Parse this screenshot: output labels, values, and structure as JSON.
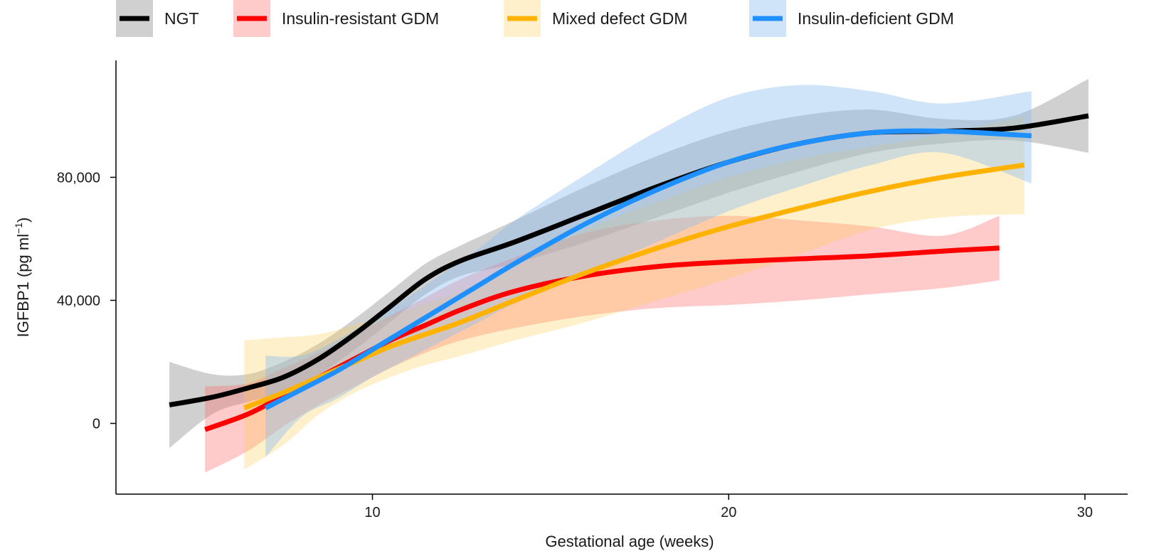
{
  "chart_data": {
    "type": "line",
    "title": "",
    "xlabel": "Gestational age (weeks)",
    "ylabel": "IGFBP1 (pg ml",
    "ylabel_sup": "−1",
    "ylabel_close": ")",
    "xlim": [
      2.8,
      31.2
    ],
    "ylim": [
      -23000,
      118000
    ],
    "xticks": [
      10,
      20,
      30
    ],
    "xtick_labels": [
      "10",
      "20",
      "30"
    ],
    "yticks": [
      0,
      40000,
      80000
    ],
    "ytick_labels": [
      "0",
      "40,000",
      "80,000"
    ],
    "grid": false,
    "legend_position": "top",
    "series": [
      {
        "name": "NGT",
        "color": "#000000",
        "band_color": "#777777",
        "band_opacity": 0.35,
        "x": [
          4.3,
          5.5,
          6.5,
          7.5,
          8.5,
          9.5,
          10.5,
          11.5,
          12.5,
          14,
          16,
          18,
          20,
          22,
          24,
          26,
          28,
          30.1
        ],
        "y": [
          6000,
          8500,
          11500,
          15000,
          21000,
          29000,
          38000,
          47000,
          53000,
          59000,
          68000,
          77000,
          85000,
          91000,
          94500,
          95000,
          96000,
          100000
        ],
        "lower": [
          -8000,
          3000,
          7000,
          10000,
          16000,
          24000,
          33000,
          42000,
          48000,
          52000,
          59000,
          67000,
          75000,
          82000,
          88000,
          91000,
          92000,
          88000
        ],
        "upper": [
          20000,
          16000,
          16000,
          20000,
          26000,
          34000,
          43000,
          52000,
          58000,
          66000,
          77000,
          87000,
          95000,
          100000,
          102000,
          99000,
          100000,
          112000
        ]
      },
      {
        "name": "Insulin-resistant GDM",
        "color": "#ff0000",
        "band_color": "#ff6666",
        "band_opacity": 0.35,
        "x": [
          5.3,
          6.5,
          7.5,
          8.5,
          9.5,
          10.5,
          11.5,
          12.5,
          14,
          16,
          18,
          20,
          22,
          24,
          26,
          27.6
        ],
        "y": [
          -2000,
          3000,
          9000,
          15000,
          21000,
          27000,
          32000,
          37000,
          43000,
          48000,
          51000,
          52500,
          53500,
          54500,
          56000,
          57000
        ],
        "lower": [
          -16000,
          -9000,
          -1000,
          6000,
          12000,
          18000,
          23000,
          27000,
          31000,
          35000,
          37500,
          38500,
          40000,
          42000,
          44000,
          46500
        ],
        "upper": [
          12000,
          13000,
          18000,
          23000,
          29000,
          35000,
          41000,
          47000,
          54000,
          62000,
          66000,
          67500,
          66000,
          64000,
          61000,
          67500
        ]
      },
      {
        "name": "Mixed defect GDM",
        "color": "#ffb300",
        "band_color": "#ffcc55",
        "band_opacity": 0.3,
        "x": [
          6.4,
          7.5,
          8.5,
          9.5,
          10.5,
          11.5,
          12.5,
          14,
          16,
          18,
          20,
          22,
          24,
          26,
          28.3
        ],
        "y": [
          5000,
          10000,
          15000,
          20000,
          25000,
          29000,
          33000,
          40000,
          49000,
          57000,
          64000,
          70000,
          75500,
          80000,
          84000
        ],
        "lower": [
          -15000,
          -7000,
          3000,
          10000,
          15000,
          19000,
          22000,
          27000,
          33000,
          40000,
          47000,
          55000,
          63000,
          67000,
          68000
        ],
        "upper": [
          27000,
          28000,
          29000,
          32000,
          35000,
          39000,
          43000,
          52000,
          63000,
          72000,
          80000,
          86000,
          90000,
          94000,
          100000
        ]
      },
      {
        "name": "Insulin-deficient GDM",
        "color": "#1e90ff",
        "band_color": "#88bbf0",
        "band_opacity": 0.4,
        "x": [
          7.0,
          8.0,
          9.0,
          10.0,
          11.0,
          12.0,
          13.0,
          14,
          16,
          18,
          20,
          22,
          24,
          26,
          28.5
        ],
        "y": [
          5000,
          11000,
          17000,
          24000,
          31000,
          38000,
          45000,
          52000,
          65000,
          76000,
          85000,
          91000,
          94500,
          95000,
          93500
        ],
        "lower": [
          -11000,
          2000,
          8000,
          15000,
          21000,
          27000,
          33000,
          39000,
          49000,
          59000,
          69000,
          77000,
          84000,
          88000,
          78000
        ],
        "upper": [
          22000,
          22000,
          27000,
          34000,
          41000,
          49000,
          57000,
          66000,
          81000,
          95000,
          106000,
          110000,
          108000,
          104000,
          108000
        ]
      }
    ]
  }
}
